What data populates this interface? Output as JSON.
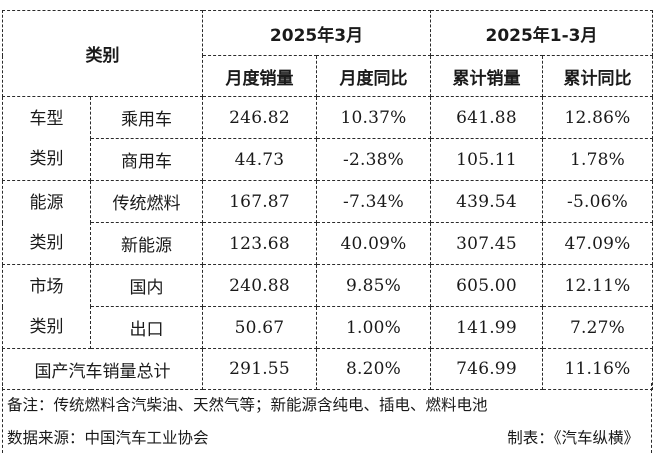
{
  "header": {
    "category_label": "类别",
    "period_month": "2025年3月",
    "period_ytd": "2025年1-3月",
    "col_month_sales": "月度销量",
    "col_month_yoy": "月度同比",
    "col_ytd_sales": "累计销量",
    "col_ytd_yoy": "累计同比"
  },
  "groups": [
    {
      "group_line1": "车型",
      "group_line2": "类别",
      "rows": [
        {
          "label": "乘用车",
          "month_sales": "246.82",
          "month_yoy": "10.37%",
          "ytd_sales": "641.88",
          "ytd_yoy": "12.86%"
        },
        {
          "label": "商用车",
          "month_sales": "44.73",
          "month_yoy": "-2.38%",
          "ytd_sales": "105.11",
          "ytd_yoy": "1.78%"
        }
      ]
    },
    {
      "group_line1": "能源",
      "group_line2": "类别",
      "rows": [
        {
          "label": "传统燃料",
          "month_sales": "167.87",
          "month_yoy": "-7.34%",
          "ytd_sales": "439.54",
          "ytd_yoy": "-5.06%"
        },
        {
          "label": "新能源",
          "month_sales": "123.68",
          "month_yoy": "40.09%",
          "ytd_sales": "307.45",
          "ytd_yoy": "47.09%"
        }
      ]
    },
    {
      "group_line1": "市场",
      "group_line2": "类别",
      "rows": [
        {
          "label": "国内",
          "month_sales": "240.88",
          "month_yoy": "9.85%",
          "ytd_sales": "605.00",
          "ytd_yoy": "12.11%"
        },
        {
          "label": "出口",
          "month_sales": "50.67",
          "month_yoy": "1.00%",
          "ytd_sales": "141.99",
          "ytd_yoy": "7.27%"
        }
      ]
    }
  ],
  "total": {
    "label": "国产汽车销量总计",
    "month_sales": "291.55",
    "month_yoy": "8.20%",
    "ytd_sales": "746.99",
    "ytd_yoy": "11.16%"
  },
  "notes": {
    "remark": "备注：传统燃料含汽柴油、天然气等；新能源含纯电、插电、燃料电池",
    "source": "数据来源：中国汽车工业协会",
    "credit": "制表：《汽车纵横》"
  }
}
